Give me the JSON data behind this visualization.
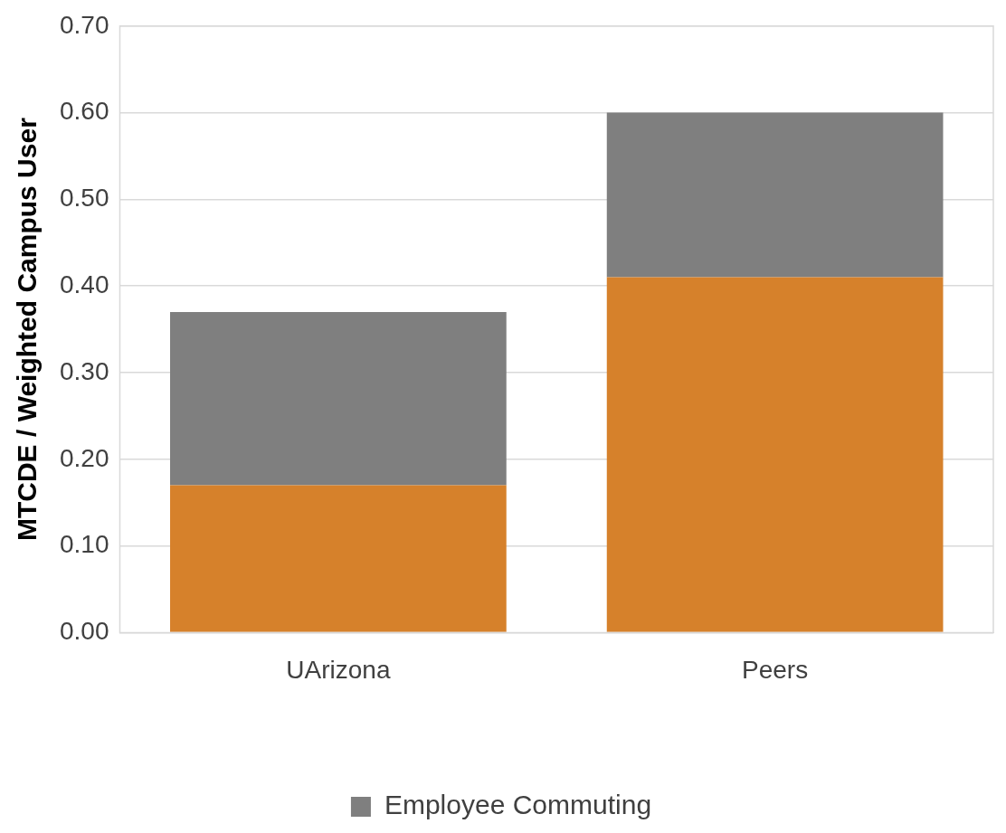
{
  "chart_data": {
    "type": "bar",
    "ylabel": "MTCDE / Weighted Campus User",
    "categories": [
      "UArizona",
      "Peers"
    ],
    "stacked": true,
    "series": [
      {
        "color": "#d6812b",
        "values": [
          0.17,
          0.41
        ]
      },
      {
        "name": "Employee Commuting",
        "color": "#7f7f7f",
        "values": [
          0.2,
          0.19
        ]
      }
    ],
    "ylim": [
      0,
      0.7
    ],
    "yticks": [
      {
        "value": 0,
        "label": "0.00"
      },
      {
        "value": 0.1,
        "label": "0.10"
      },
      {
        "value": 0.2,
        "label": "0.20"
      },
      {
        "value": 0.3,
        "label": "0.30"
      },
      {
        "value": 0.4,
        "label": "0.40"
      },
      {
        "value": 0.5,
        "label": "0.50"
      },
      {
        "value": 0.6,
        "label": "0.60"
      },
      {
        "value": 0.7,
        "label": "0.70"
      }
    ],
    "grid": "y",
    "legend": "bottom"
  }
}
